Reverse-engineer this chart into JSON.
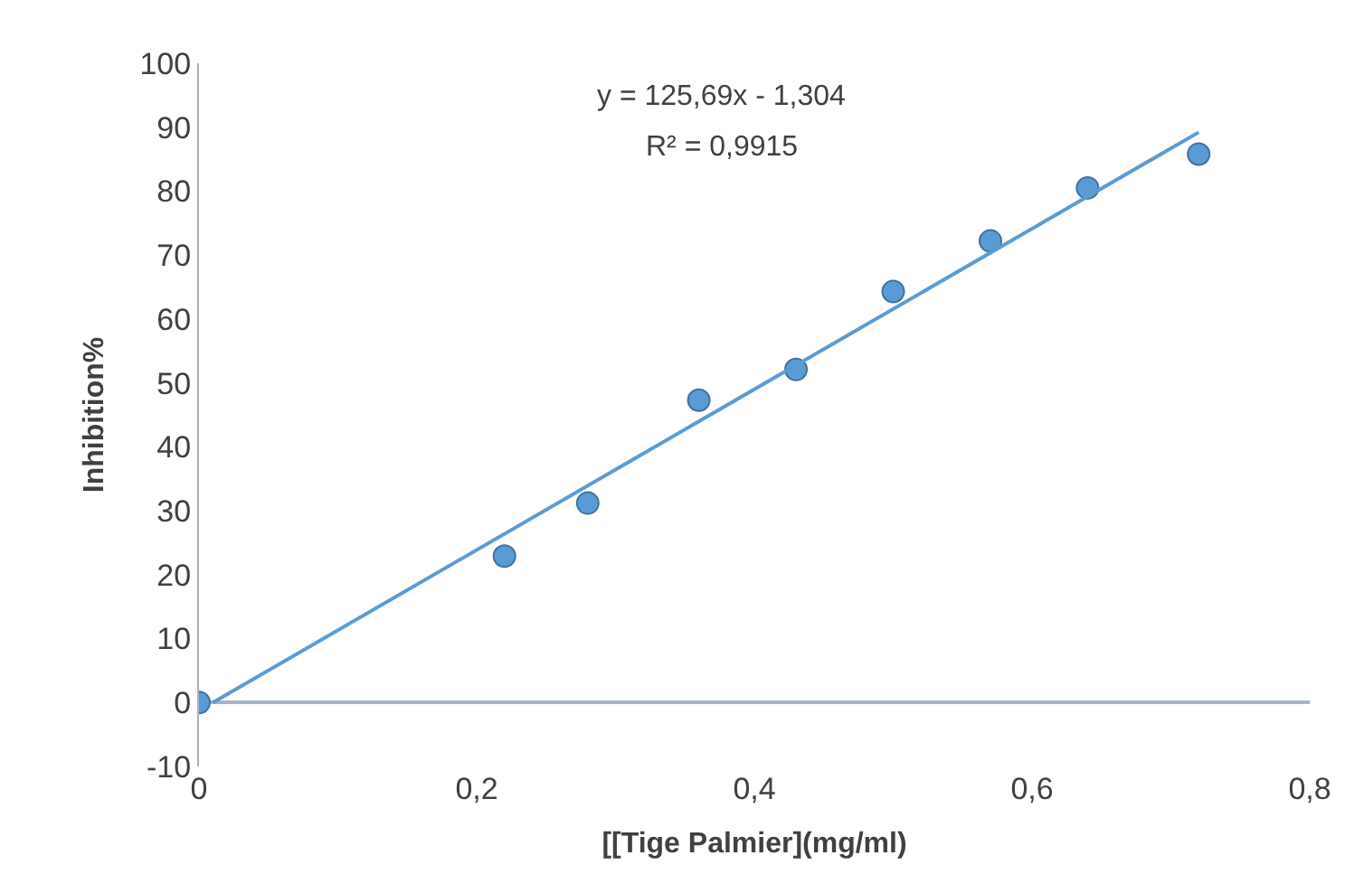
{
  "chart_data": {
    "type": "scatter",
    "xlabel": "[[Tige Palmier](mg/ml)",
    "ylabel": "Inhibition%",
    "annotations": [
      "y = 125,69x - 1,304",
      "R² = 0,9915"
    ],
    "series": [
      {
        "color": "#5b9bd5",
        "marker": "circle",
        "x": [
          0,
          0.22,
          0.28,
          0.36,
          0.43,
          0.5,
          0.57,
          0.64,
          0.72
        ],
        "values": [
          0,
          22.9,
          31.2,
          47.3,
          52.1,
          64.3,
          72.2,
          80.5,
          85.8
        ]
      },
      {
        "type": "line",
        "color": "#5b9bd5",
        "marker": "none",
        "line_style": "solid",
        "x": [
          0.01,
          0.72
        ],
        "values": [
          0,
          89.2
        ]
      }
    ],
    "xlim": [
      0,
      0.8
    ],
    "xticks": [
      0,
      {
        "value": 0.2,
        "label": "0,2"
      },
      {
        "value": 0.4,
        "label": "0,4"
      },
      {
        "value": 0.6,
        "label": "0,6"
      },
      {
        "value": 0.8,
        "label": "0,8"
      }
    ],
    "ylim": [
      -10,
      100
    ],
    "yticks": [
      -10,
      0,
      10,
      20,
      30,
      40,
      50,
      60,
      70,
      80,
      90,
      100
    ]
  }
}
